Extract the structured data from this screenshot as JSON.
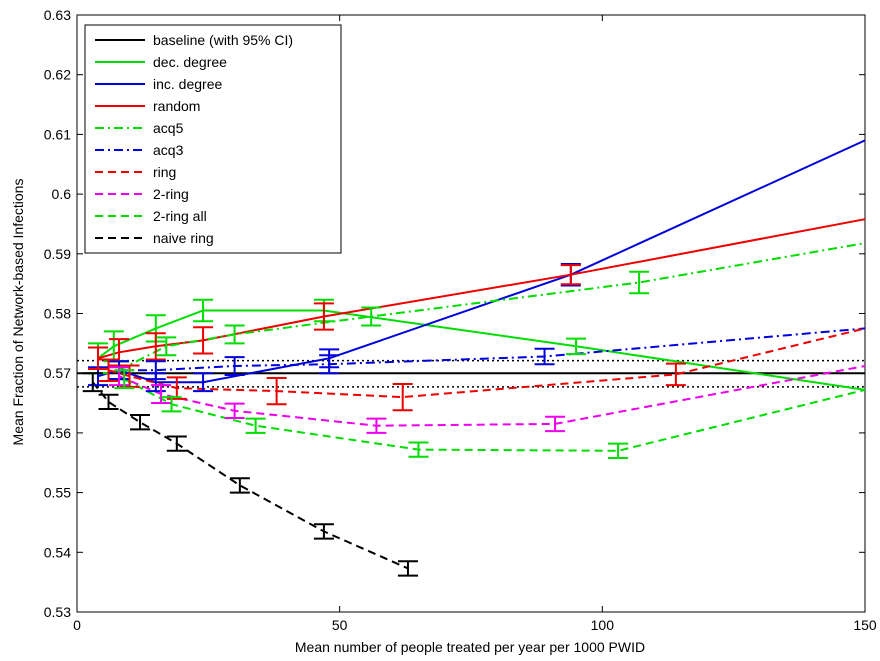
{
  "chart_data": {
    "type": "line",
    "title": "",
    "xlabel": "Mean number of people treated per year per 1000 PWID",
    "ylabel": "Mean Fraction of Network-based Infections",
    "xlim": [
      0,
      150
    ],
    "ylim": [
      0.53,
      0.63
    ],
    "xticks": [
      "0",
      "50",
      "100",
      "150"
    ],
    "yticks": [
      "0.53",
      "0.54",
      "0.55",
      "0.56",
      "0.57",
      "0.58",
      "0.59",
      "0.6",
      "0.61",
      "0.62",
      "0.63"
    ],
    "grid": false,
    "legend_position": "top-left",
    "baseline": {
      "name": "baseline (with 95% CI)",
      "color": "#000000",
      "value": 0.57,
      "ci": [
        0.5677,
        0.5721
      ]
    },
    "series": [
      {
        "name": "dec. degree",
        "color": "#00dd00",
        "dash": "solid",
        "points": [
          [
            4,
            0.5725,
            0.0025
          ],
          [
            7,
            0.5745,
            0.0025
          ],
          [
            15,
            0.5775,
            0.0022
          ],
          [
            24,
            0.5805,
            0.0018
          ],
          [
            47,
            0.5805,
            0.0018
          ],
          [
            95,
            0.5745,
            0.0013
          ],
          [
            150,
            0.5672,
            0
          ]
        ]
      },
      {
        "name": "inc. degree",
        "color": "#0000dd",
        "dash": "solid",
        "points": [
          [
            4,
            0.5695,
            0.0015
          ],
          [
            8,
            0.5705,
            0.0015
          ],
          [
            15,
            0.5685,
            0.0015
          ],
          [
            24,
            0.5685,
            0.0015
          ],
          [
            48,
            0.5725,
            0.0015
          ],
          [
            94,
            0.5865,
            0.0018
          ],
          [
            150,
            0.609,
            0
          ]
        ]
      },
      {
        "name": "random",
        "color": "#ee0000",
        "dash": "solid",
        "points": [
          [
            4,
            0.5725,
            0.0018
          ],
          [
            8,
            0.5735,
            0.0022
          ],
          [
            15,
            0.5745,
            0.0022
          ],
          [
            24,
            0.5755,
            0.0022
          ],
          [
            47,
            0.5795,
            0.0022
          ],
          [
            94,
            0.5865,
            0.0016
          ],
          [
            150,
            0.5958,
            0
          ]
        ]
      },
      {
        "name": "acq5",
        "color": "#00dd00",
        "dash": "dashdot",
        "points": [
          [
            8,
            0.5705,
            0.0015
          ],
          [
            17,
            0.5745,
            0.0015
          ],
          [
            30,
            0.5765,
            0.0015
          ],
          [
            56,
            0.5795,
            0.0015
          ],
          [
            107,
            0.5852,
            0.0018
          ],
          [
            150,
            0.5918,
            0
          ]
        ]
      },
      {
        "name": "acq3",
        "color": "#0000dd",
        "dash": "dashdot",
        "points": [
          [
            8,
            0.5705,
            0.0015
          ],
          [
            15,
            0.5705,
            0.0015
          ],
          [
            30,
            0.5712,
            0.0015
          ],
          [
            48,
            0.5715,
            0.0015
          ],
          [
            89,
            0.5728,
            0.0013
          ],
          [
            150,
            0.5775,
            0
          ]
        ]
      },
      {
        "name": "ring",
        "color": "#ee0000",
        "dash": "dashed",
        "points": [
          [
            6,
            0.5705,
            0.0018
          ],
          [
            10,
            0.5695,
            0.0018
          ],
          [
            19,
            0.5675,
            0.0018
          ],
          [
            38,
            0.567,
            0.0022
          ],
          [
            62,
            0.566,
            0.0022
          ],
          [
            114,
            0.5698,
            0.0018
          ],
          [
            150,
            0.5775,
            0
          ]
        ]
      },
      {
        "name": "2-ring",
        "color": "#ee00ee",
        "dash": "dashed",
        "points": [
          [
            8,
            0.5695,
            0.0015
          ],
          [
            16,
            0.5665,
            0.0015
          ],
          [
            30,
            0.5637,
            0.0012
          ],
          [
            57,
            0.5612,
            0.0012
          ],
          [
            91,
            0.5615,
            0.0012
          ],
          [
            150,
            0.5712,
            0
          ]
        ]
      },
      {
        "name": "2-ring all",
        "color": "#00dd00",
        "dash": "dashed",
        "points": [
          [
            9,
            0.569,
            0.0015
          ],
          [
            18,
            0.5648,
            0.0012
          ],
          [
            34,
            0.5612,
            0.0012
          ],
          [
            65,
            0.5572,
            0.0012
          ],
          [
            103,
            0.557,
            0.0012
          ],
          [
            150,
            0.5672,
            0
          ]
        ]
      },
      {
        "name": "naive ring",
        "color": "#000000",
        "dash": "dashed",
        "points": [
          [
            3,
            0.5685,
            0.0015
          ],
          [
            6,
            0.5652,
            0.0012
          ],
          [
            12,
            0.5618,
            0.0012
          ],
          [
            19,
            0.5582,
            0.0012
          ],
          [
            31,
            0.5512,
            0.0012
          ],
          [
            47,
            0.5435,
            0.0012
          ],
          [
            63,
            0.5373,
            0.0012
          ]
        ]
      }
    ]
  }
}
